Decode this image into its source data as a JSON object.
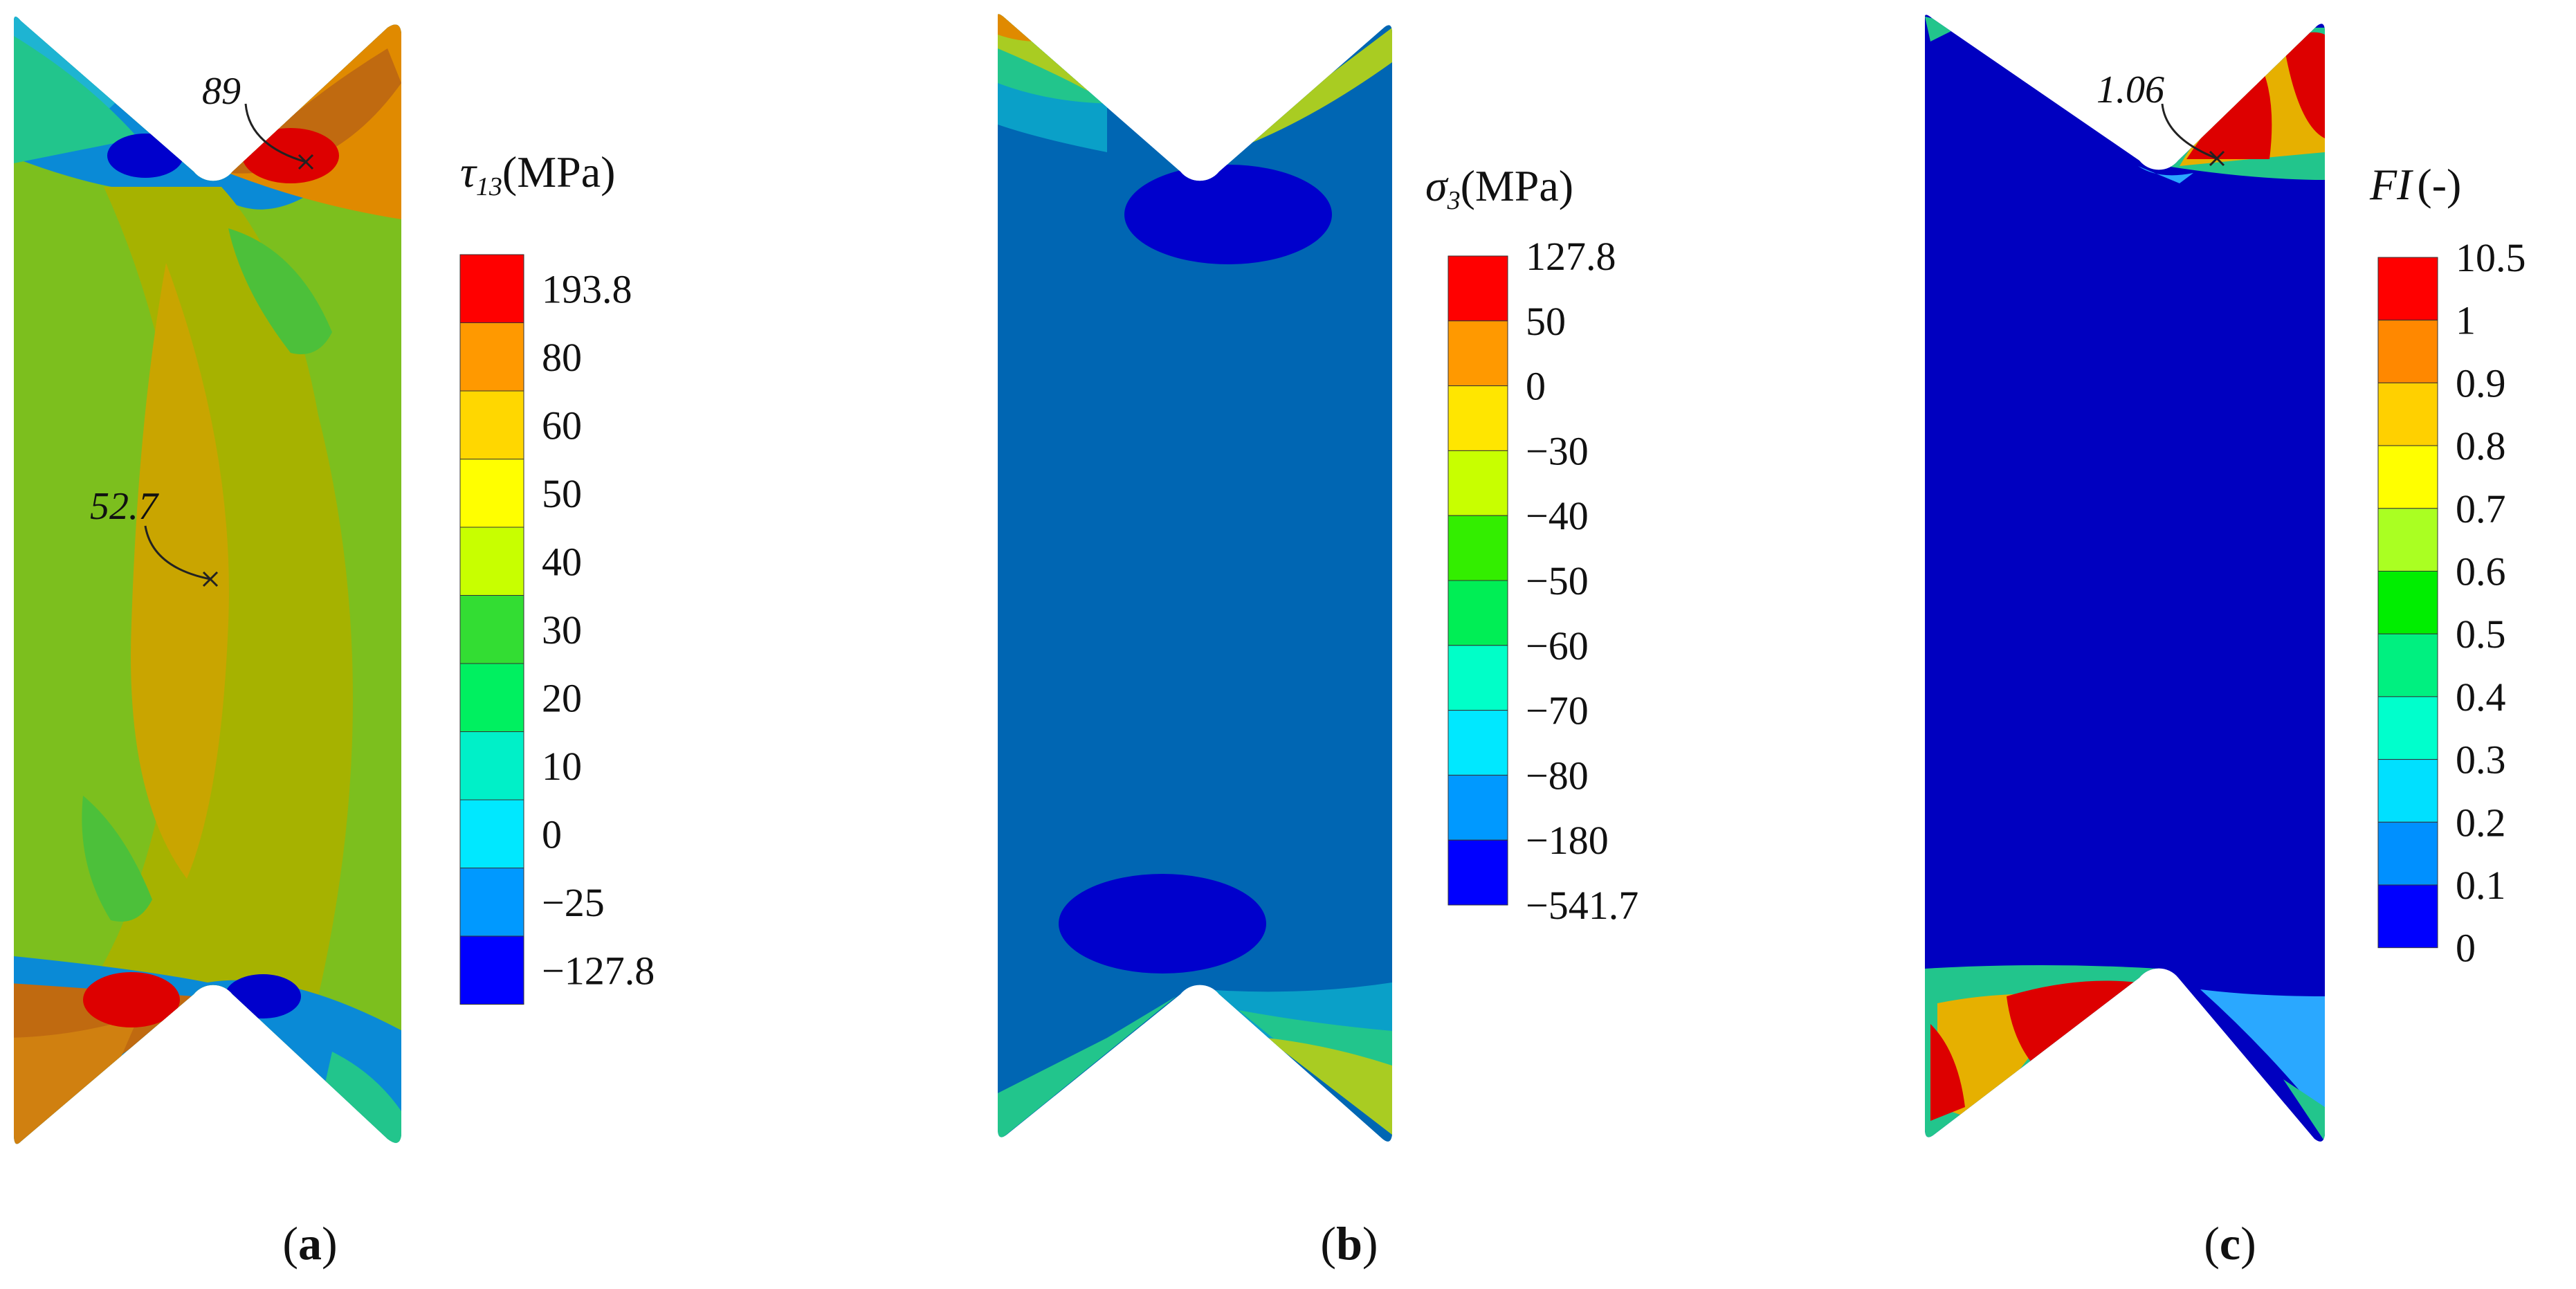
{
  "panels": [
    {
      "id": "a",
      "caption": "a",
      "legend": {
        "symbol": "τ",
        "subscript": "13",
        "unit": "(MPa)",
        "labels": [
          "193.8",
          "80",
          "60",
          "50",
          "40",
          "30",
          "20",
          "10",
          "0",
          "−25",
          "−127.8"
        ]
      },
      "annotations": [
        {
          "id": "notch-peak",
          "text": "89"
        },
        {
          "id": "center",
          "text": "52.7"
        }
      ]
    },
    {
      "id": "b",
      "caption": "b",
      "legend": {
        "symbol": "σ",
        "subscript": "3",
        "unit": "(MPa)",
        "labels": [
          "127.8",
          "50",
          "0",
          "−30",
          "−40",
          "−50",
          "−60",
          "−70",
          "−80",
          "−180",
          "−541.7"
        ]
      },
      "annotations": []
    },
    {
      "id": "c",
      "caption": "c",
      "legend": {
        "symbol": "FI",
        "subscript": "",
        "unit": "(-)",
        "labels": [
          "10.5",
          "1",
          "0.9",
          "0.8",
          "0.7",
          "0.6",
          "0.5",
          "0.4",
          "0.3",
          "0.2",
          "0.1",
          "0"
        ]
      },
      "annotations": [
        {
          "id": "notch-peak",
          "text": "1.06"
        }
      ]
    }
  ],
  "colors": {
    "legend_a": [
      "#ff0000",
      "#ff9900",
      "#ffd700",
      "#ffff00",
      "#c8ff00",
      "#33dd33",
      "#00f060",
      "#00f0c8",
      "#00e8ff",
      "#0099ff",
      "#0000ff"
    ],
    "legend_b": [
      "#ff0000",
      "#ff9900",
      "#ffe600",
      "#c8ff00",
      "#33ee00",
      "#00ee55",
      "#00ffc8",
      "#00e8ff",
      "#0099ff",
      "#0000ff"
    ],
    "legend_c": [
      "#ff0000",
      "#ff8800",
      "#ffd000",
      "#ffff00",
      "#aaff22",
      "#00ee00",
      "#00f080",
      "#00ffcc",
      "#00e0ff",
      "#0090ff",
      "#0000ff"
    ],
    "plot_a_base": "#7cbf1e",
    "plot_a_band": "#a6b200",
    "plot_a_core": "#c9a500",
    "plot_b_base": "#0066b3",
    "plot_c_base": "#0000c0"
  }
}
